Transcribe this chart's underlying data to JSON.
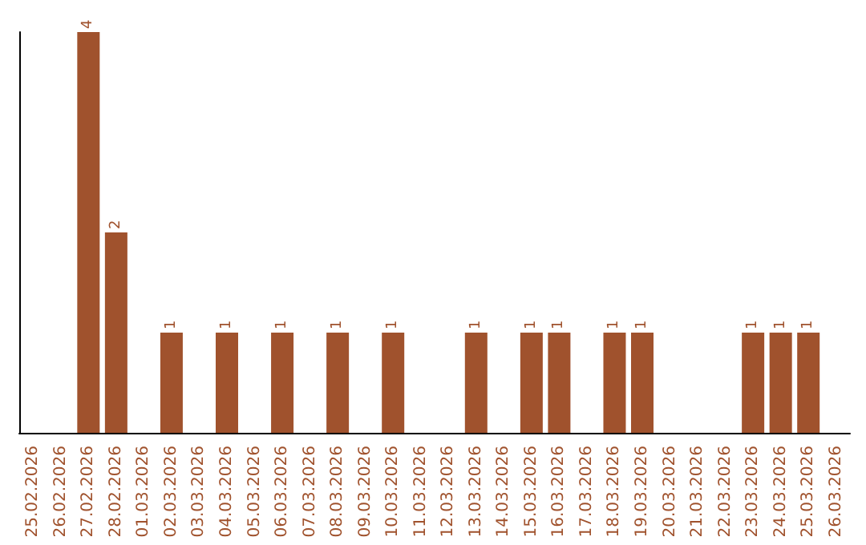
{
  "chart_data": {
    "type": "bar",
    "categories": [
      "25.02.2026",
      "26.02.2026",
      "27.02.2026",
      "28.02.2026",
      "01.03.2026",
      "02.03.2026",
      "03.03.2026",
      "04.03.2026",
      "05.03.2026",
      "06.03.2026",
      "07.03.2026",
      "08.03.2026",
      "09.03.2026",
      "10.03.2026",
      "11.03.2026",
      "12.03.2026",
      "13.03.2026",
      "14.03.2026",
      "15.03.2026",
      "16.03.2026",
      "17.03.2026",
      "18.03.2026",
      "19.03.2026",
      "20.03.2026",
      "21.03.2026",
      "22.03.2026",
      "23.03.2026",
      "24.03.2026",
      "25.03.2026",
      "26.03.2026"
    ],
    "values": [
      0,
      0,
      4,
      2,
      0,
      1,
      0,
      1,
      0,
      1,
      0,
      1,
      0,
      1,
      0,
      0,
      1,
      0,
      1,
      1,
      0,
      1,
      1,
      0,
      0,
      0,
      1,
      1,
      1,
      0
    ],
    "value_labels": [
      null,
      null,
      "4",
      "2",
      null,
      "1",
      null,
      "1",
      null,
      "1",
      null,
      "1",
      null,
      "1",
      null,
      null,
      "1",
      null,
      "1",
      "1",
      null,
      "1",
      "1",
      null,
      null,
      null,
      "1",
      "1",
      "1",
      null
    ],
    "color": "#a0522d",
    "grid": false,
    "tick_labels": "x"
  }
}
